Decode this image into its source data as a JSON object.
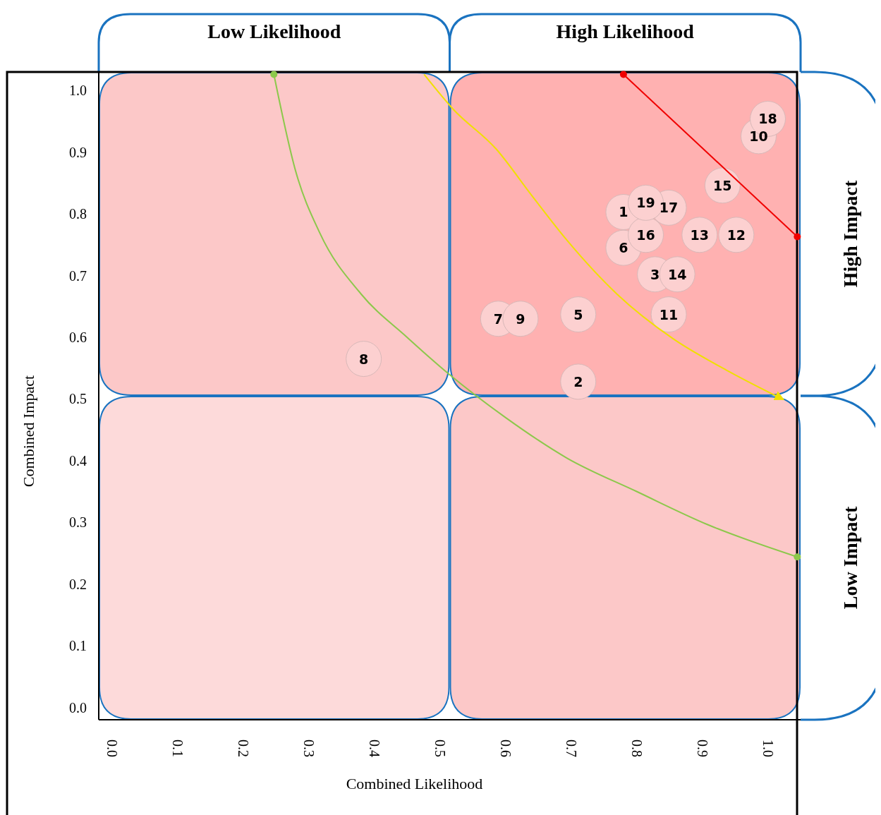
{
  "chart_data": {
    "type": "scatter",
    "xlabel": "Combined Likelihood",
    "ylabel": "Combined Impact",
    "xlim": [
      -0.02,
      1.05
    ],
    "ylim": [
      -0.02,
      1.03
    ],
    "xticks": [
      {
        "value": 0,
        "label": "0.0"
      },
      0.1,
      0.2,
      0.3,
      0.4,
      0.5,
      0.6,
      0.7,
      0.8,
      0.9,
      {
        "value": 1,
        "label": "1.0"
      }
    ],
    "yticks": [
      {
        "value": 0,
        "label": "0.0"
      },
      0.1,
      0.2,
      0.3,
      0.4,
      0.5,
      0.6,
      0.7,
      0.8,
      0.9,
      {
        "value": 1,
        "label": "1.0"
      }
    ],
    "annotations": [
      "Low Likelihood",
      "High Likelihood",
      "High Impact",
      "Low Impact",
      {
        "text": "1",
        "x": 0.78,
        "y": 0.803
      },
      {
        "text": "2",
        "x": 0.711,
        "y": 0.528
      },
      {
        "text": "3",
        "x": 0.828,
        "y": 0.702
      },
      {
        "text": "5",
        "x": 0.711,
        "y": 0.637
      },
      {
        "text": "6",
        "x": 0.78,
        "y": 0.745
      },
      {
        "text": "7",
        "x": 0.589,
        "y": 0.63
      },
      {
        "text": "8",
        "x": 0.384,
        "y": 0.565
      },
      {
        "text": "9",
        "x": 0.623,
        "y": 0.63
      },
      {
        "text": "10",
        "x": 0.986,
        "y": 0.926
      },
      {
        "text": "11",
        "x": 0.849,
        "y": 0.637
      },
      {
        "text": "12",
        "x": 0.952,
        "y": 0.766
      },
      {
        "text": "13",
        "x": 0.896,
        "y": 0.766
      },
      {
        "text": "14",
        "x": 0.862,
        "y": 0.702
      },
      {
        "text": "15",
        "x": 0.931,
        "y": 0.846
      },
      {
        "text": "16",
        "x": 0.814,
        "y": 0.766
      },
      {
        "text": "17",
        "x": 0.849,
        "y": 0.81
      },
      {
        "text": "18",
        "x": 1.0,
        "y": 0.954
      },
      {
        "text": "19",
        "x": 0.814,
        "y": 0.818
      }
    ],
    "series": [
      {
        "color": "#fcd0d0",
        "marker": "circle",
        "x": [
          0.78,
          0.711,
          0.828,
          0.711,
          0.78,
          0.589,
          0.384,
          0.623,
          0.986,
          0.849,
          0.952,
          0.896,
          0.862,
          0.931,
          0.814,
          0.849,
          1.0,
          0.814
        ],
        "values": [
          0.803,
          0.528,
          0.702,
          0.637,
          0.745,
          0.63,
          0.565,
          0.63,
          0.926,
          0.637,
          0.766,
          0.766,
          0.702,
          0.846,
          0.766,
          0.81,
          0.954,
          0.818
        ]
      },
      {
        "type": "line",
        "color": "#8cc84b",
        "marker": "none",
        "x": [
          0.247,
          0.28,
          0.317,
          0.38,
          0.45,
          0.513,
          0.6,
          0.694,
          0.8,
          0.909,
          1.045
        ],
        "values": [
          1.026,
          0.87,
          0.769,
          0.67,
          0.6,
          0.541,
          0.47,
          0.404,
          0.35,
          0.296,
          0.244
        ]
      },
      {
        "color": "#8cc84b",
        "marker": "circle",
        "x": [
          0.247,
          1.045
        ],
        "values": [
          1.026,
          0.244
        ]
      },
      {
        "type": "line",
        "color": "#f0e000",
        "x": [
          0.476,
          0.52,
          0.586,
          0.64,
          0.694,
          0.77,
          0.855,
          0.94,
          1.024
        ],
        "values": [
          1.026,
          0.97,
          0.905,
          0.83,
          0.757,
          0.67,
          0.598,
          0.545,
          0.499
        ]
      },
      {
        "type": "line",
        "color": "#f00000",
        "marker": "circle",
        "x": [
          0.78,
          1.045
        ],
        "values": [
          1.026,
          0.763
        ]
      }
    ]
  }
}
